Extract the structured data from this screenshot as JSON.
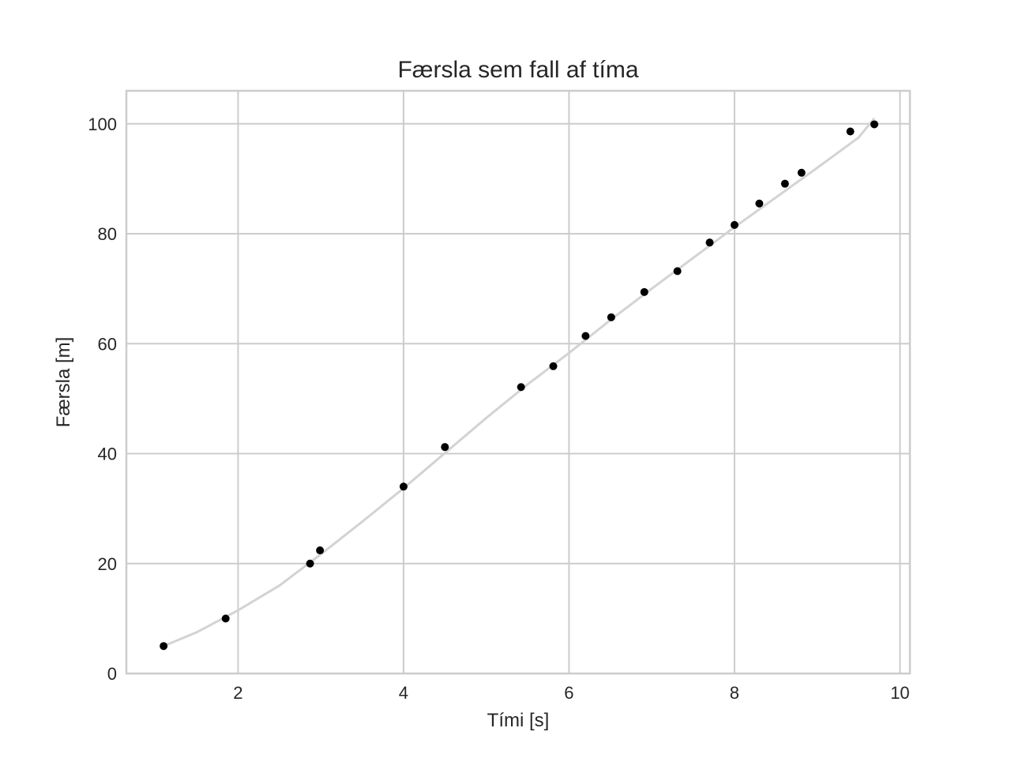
{
  "chart_data": {
    "type": "scatter",
    "title": "Færsla sem fall af tíma",
    "xlabel": "Tími [s]",
    "ylabel": "Færsla [m]",
    "xlim": [
      0.65,
      10.12
    ],
    "ylim": [
      0,
      106
    ],
    "xticks": [
      2,
      4,
      6,
      8,
      10
    ],
    "yticks": [
      0,
      20,
      40,
      60,
      80,
      100
    ],
    "xtick_labels": [
      "2",
      "4",
      "6",
      "8",
      "10"
    ],
    "ytick_labels": [
      "0",
      "20",
      "40",
      "60",
      "80",
      "100"
    ],
    "grid": true,
    "series": [
      {
        "kind": "points",
        "color": "#000000",
        "x": [
          1.1,
          1.85,
          2.87,
          2.99,
          4.0,
          4.5,
          5.42,
          5.81,
          6.2,
          6.51,
          6.91,
          7.31,
          7.7,
          8.0,
          8.3,
          8.61,
          8.81,
          9.4,
          9.69
        ],
        "y": [
          5,
          10,
          20,
          22.4,
          34,
          41.2,
          52.1,
          55.9,
          61.4,
          64.8,
          69.4,
          73.2,
          78.4,
          81.6,
          85.5,
          89.1,
          91.1,
          98.6,
          99.9
        ]
      },
      {
        "kind": "curve",
        "color": "#d3d3d3",
        "x": [
          1.1,
          1.5,
          2.0,
          2.5,
          3.0,
          3.5,
          4.0,
          4.5,
          5.0,
          5.5,
          6.0,
          6.5,
          7.0,
          7.5,
          8.0,
          8.5,
          9.0,
          9.5,
          9.69
        ],
        "y": [
          5,
          7.5,
          11.5,
          16.0,
          21.7,
          27.6,
          33.7,
          40.1,
          46.5,
          52.6,
          58.3,
          64.3,
          70.0,
          75.6,
          81.2,
          86.6,
          92.0,
          97.5,
          101.0
        ]
      }
    ]
  }
}
